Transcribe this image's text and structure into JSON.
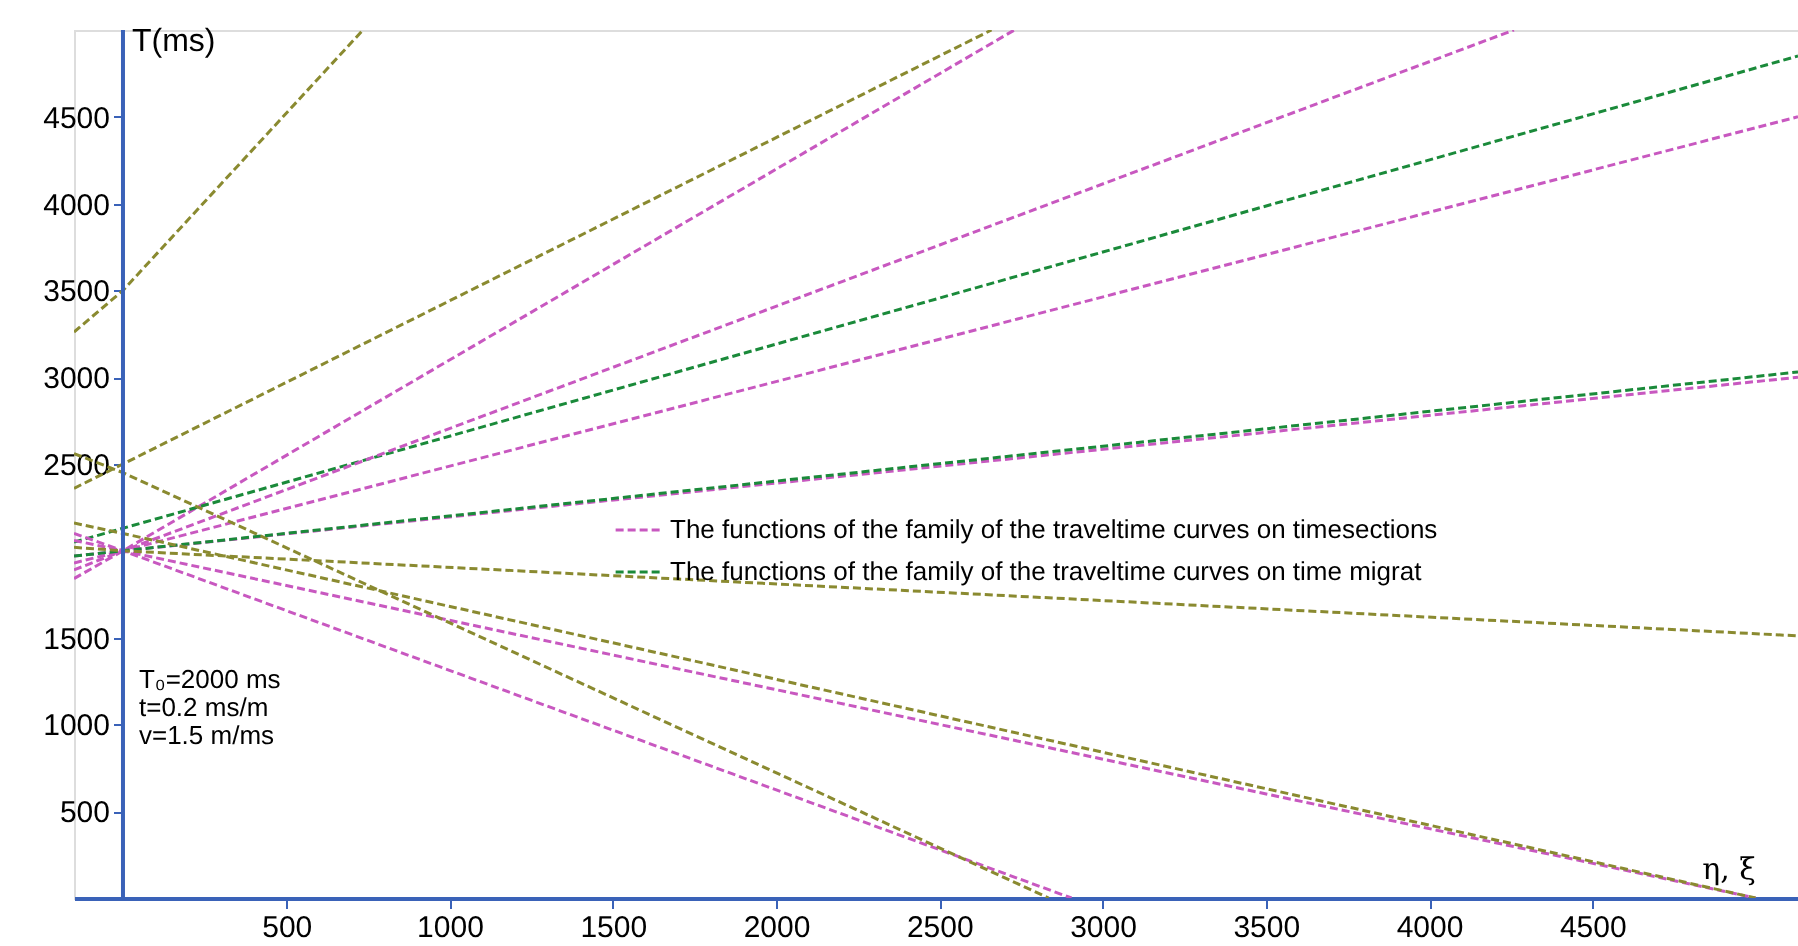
{
  "chart_data": {
    "type": "line",
    "xlabel": "η, ξ",
    "ylabel": "T(ms)",
    "xlim": [
      -150,
      5130
    ],
    "ylim": [
      0,
      5000
    ],
    "xticks": [
      500,
      1000,
      1500,
      2000,
      2500,
      3000,
      3500,
      4000,
      4500
    ],
    "yticks": [
      500,
      1000,
      1500,
      2500,
      3000,
      3500,
      4000,
      4500
    ],
    "grid": false,
    "legend": "right",
    "marker": "none",
    "line_style": "dashed",
    "ref_lines": [
      {
        "axis": "x",
        "value": 0,
        "color": "#3a62b8",
        "line_style": "solid"
      }
    ],
    "annotations": [
      "T₀=2000 ms",
      "t=0.2 ms/m",
      "v=1.5 m/ms"
    ],
    "series": [
      {
        "name": "The functions of the family of the traveltime curves on timesections",
        "color": "#c858c0",
        "x": [
          -150,
          0,
          2730
        ],
        "values": [
          1840,
          2000,
          5000
        ]
      },
      {
        "name": "The functions of the family of the traveltime curves on time migrat",
        "color": "#1a8a3a",
        "x": [
          -150,
          0,
          5130
        ],
        "values": [
          2050,
          2130,
          4850
        ]
      },
      {
        "color": "#c858c0",
        "x": [
          -150,
          0,
          4260
        ],
        "values": [
          1890,
          2000,
          5000
        ]
      },
      {
        "color": "#c858c0",
        "x": [
          -150,
          0,
          5130
        ],
        "values": [
          1930,
          2000,
          4500
        ]
      },
      {
        "color": "#c858c0",
        "x": [
          -150,
          0,
          5130
        ],
        "values": [
          1970,
          2000,
          3000
        ]
      },
      {
        "color": "#c858c0",
        "x": [
          -150,
          0,
          5000
        ],
        "values": [
          2060,
          2000,
          0
        ]
      },
      {
        "color": "#c858c0",
        "x": [
          -150,
          0,
          2905
        ],
        "values": [
          2100,
          2000,
          0
        ]
      },
      {
        "color": "#1a8a3a",
        "x": [
          -150,
          0,
          5130
        ],
        "values": [
          1970,
          2000,
          3030
        ]
      },
      {
        "color": "#8a8a30",
        "x": [
          -150,
          0,
          735
        ],
        "values": [
          3260,
          3500,
          5000
        ]
      },
      {
        "color": "#8a8a30",
        "x": [
          -150,
          0,
          2660
        ],
        "values": [
          2360,
          2500,
          5000
        ]
      },
      {
        "color": "#8a8a30",
        "x": [
          -150,
          0,
          2835
        ],
        "values": [
          2560,
          2450,
          0
        ]
      },
      {
        "color": "#8a8a30",
        "x": [
          -150,
          0,
          5000
        ],
        "values": [
          2160,
          2100,
          0
        ]
      },
      {
        "color": "#8a8a30",
        "x": [
          -150,
          0,
          5130
        ],
        "values": [
          2020,
          2000,
          1510
        ]
      }
    ]
  }
}
